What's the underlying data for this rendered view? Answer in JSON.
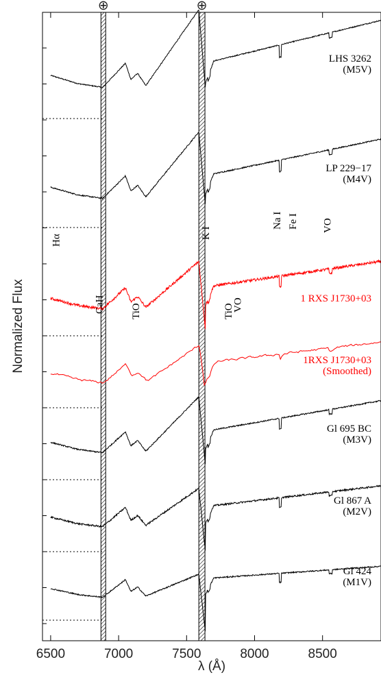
{
  "chart_data": {
    "type": "line",
    "title": "",
    "xlabel": "λ (Å)",
    "ylabel": "Normalized Flux",
    "xlim": [
      6440,
      8930
    ],
    "x_ticks": [
      6500,
      7000,
      7500,
      8000,
      8500
    ],
    "x_tick_labels": [
      "6500",
      "7000",
      "7500",
      "8000",
      "8500"
    ],
    "grid": false,
    "telluric_bands": [
      {
        "range": [
          6870,
          6905
        ],
        "symbol": "⊕"
      },
      {
        "range": [
          7590,
          7635
        ],
        "symbol": "⊕"
      }
    ],
    "series": [
      {
        "name": "LHS 3262",
        "type": "(M5V)",
        "color": "#000000"
      },
      {
        "name": "LP 229−17",
        "type": "(M4V)",
        "color": "#000000"
      },
      {
        "name": "1 RXS J1730+03",
        "type": "",
        "color": "#ff0000"
      },
      {
        "name": "1RXS J1730+03",
        "type": "(Smoothed)",
        "color": "#ff0000"
      },
      {
        "name": "Gl 695 BC",
        "type": "(M3V)",
        "color": "#000000"
      },
      {
        "name": "Gl 867 A",
        "type": "(M2V)",
        "color": "#000000"
      },
      {
        "name": "Gl 424",
        "type": "(M1V)",
        "color": "#000000"
      }
    ],
    "feature_labels": [
      {
        "text": "Hα",
        "wavelength": 6563
      },
      {
        "text": "K I",
        "wavelength": 7665
      },
      {
        "text": "Na I",
        "wavelength": 8190
      },
      {
        "text": "Fe I",
        "wavelength": 8305
      },
      {
        "text": "VO",
        "wavelength": 8560
      },
      {
        "text": "CaH",
        "wavelength": 6880
      },
      {
        "text": "TiO",
        "wavelength": 7150
      },
      {
        "text": "TiO",
        "wavelength": 7830
      },
      {
        "text": "VO",
        "wavelength": 7900
      }
    ]
  }
}
